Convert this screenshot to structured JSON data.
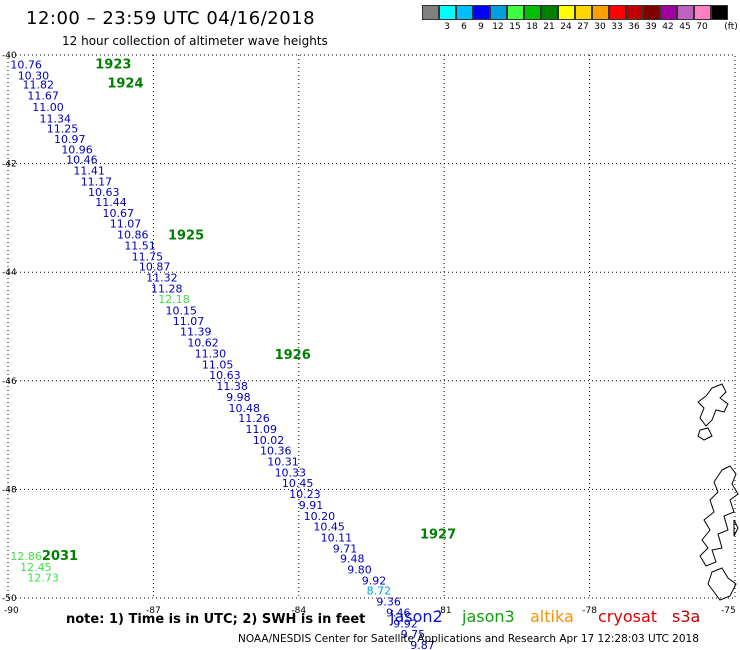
{
  "title": "12:00 – 23:59 UTC 04/16/2018",
  "subtitle": "12 hour collection of altimeter wave heights",
  "scale": {
    "unit": "(ft)",
    "swatches": [
      {
        "color": "#808080",
        "label": ""
      },
      {
        "color": "#00ffff",
        "label": "3"
      },
      {
        "color": "#00bfff",
        "label": "6"
      },
      {
        "color": "#0000ff",
        "label": "9"
      },
      {
        "color": "#00a0e0",
        "label": "12"
      },
      {
        "color": "#40ff40",
        "label": "15"
      },
      {
        "color": "#00c000",
        "label": "18"
      },
      {
        "color": "#008000",
        "label": "21"
      },
      {
        "color": "#ffff00",
        "label": "24"
      },
      {
        "color": "#ffd700",
        "label": "27"
      },
      {
        "color": "#ffa000",
        "label": "30"
      },
      {
        "color": "#ff0000",
        "label": "33"
      },
      {
        "color": "#c00000",
        "label": "36"
      },
      {
        "color": "#800000",
        "label": "39"
      },
      {
        "color": "#a000a0",
        "label": "42"
      },
      {
        "color": "#c060c0",
        "label": "45"
      },
      {
        "color": "#ff80c0",
        "label": "70"
      },
      {
        "color": "#000000",
        "label": ""
      }
    ]
  },
  "axes": {
    "lat_ticks": [
      "-40",
      "-42",
      "-44",
      "-46",
      "-48",
      "-50"
    ],
    "lon_ticks": [
      "-90",
      "-87",
      "-84",
      "-81",
      "-78",
      "-75"
    ]
  },
  "track": {
    "times": [
      {
        "label": "1923",
        "lon": -88.2,
        "lat": -40.25
      },
      {
        "label": "1924",
        "lon": -87.95,
        "lat": -40.6
      },
      {
        "label": "1925",
        "lon": -86.7,
        "lat": -43.4
      },
      {
        "label": "1926",
        "lon": -84.5,
        "lat": -45.6
      },
      {
        "label": "1927",
        "lon": -81.5,
        "lat": -48.9
      },
      {
        "label": "2031",
        "lon": -89.3,
        "lat": -49.3
      }
    ],
    "points": [
      {
        "v": "10.76",
        "lon": -89.95,
        "lat": -40.25,
        "color": "#0000c0"
      },
      {
        "v": "10.30",
        "lon": -89.8,
        "lat": -40.45,
        "color": "#0000c0"
      },
      {
        "v": "11.82",
        "lon": -89.7,
        "lat": -40.62,
        "color": "#0000c0"
      },
      {
        "v": "11.67",
        "lon": -89.6,
        "lat": -40.82,
        "color": "#0000c0"
      },
      {
        "v": "11.00",
        "lon": -89.5,
        "lat": -41.03,
        "color": "#0000c0"
      },
      {
        "v": "11.34",
        "lon": -89.35,
        "lat": -41.24,
        "color": "#0000c0"
      },
      {
        "v": "11.25",
        "lon": -89.2,
        "lat": -41.43,
        "color": "#0000c0"
      },
      {
        "v": "10.97",
        "lon": -89.05,
        "lat": -41.62,
        "color": "#0000c0"
      },
      {
        "v": "10.96",
        "lon": -88.9,
        "lat": -41.81,
        "color": "#0000c0"
      },
      {
        "v": "10.46",
        "lon": -88.8,
        "lat": -42.0,
        "color": "#0000c0"
      },
      {
        "v": "11.41",
        "lon": -88.65,
        "lat": -42.2,
        "color": "#0000c0"
      },
      {
        "v": "11.17",
        "lon": -88.5,
        "lat": -42.4,
        "color": "#0000c0"
      },
      {
        "v": "10.63",
        "lon": -88.35,
        "lat": -42.6,
        "color": "#0000c0"
      },
      {
        "v": "11.44",
        "lon": -88.2,
        "lat": -42.78,
        "color": "#0000c0"
      },
      {
        "v": "10.67",
        "lon": -88.05,
        "lat": -42.98,
        "color": "#0000c0"
      },
      {
        "v": "11.07",
        "lon": -87.9,
        "lat": -43.18,
        "color": "#0000c0"
      },
      {
        "v": "10.86",
        "lon": -87.75,
        "lat": -43.38,
        "color": "#0000c0"
      },
      {
        "v": "11.51",
        "lon": -87.6,
        "lat": -43.58,
        "color": "#0000c0"
      },
      {
        "v": "11.75",
        "lon": -87.45,
        "lat": -43.78,
        "color": "#0000c0"
      },
      {
        "v": "10.87",
        "lon": -87.3,
        "lat": -43.97,
        "color": "#0000c0"
      },
      {
        "v": "11.32",
        "lon": -87.15,
        "lat": -44.17,
        "color": "#0000c0"
      },
      {
        "v": "11.28",
        "lon": -87.05,
        "lat": -44.37,
        "color": "#0000c0"
      },
      {
        "v": "12.18",
        "lon": -86.9,
        "lat": -44.57,
        "color": "#40e040"
      },
      {
        "v": "10.15",
        "lon": -86.75,
        "lat": -44.78,
        "color": "#0000c0"
      },
      {
        "v": "11.07",
        "lon": -86.6,
        "lat": -44.97,
        "color": "#0000c0"
      },
      {
        "v": "11.39",
        "lon": -86.45,
        "lat": -45.17,
        "color": "#0000c0"
      },
      {
        "v": "10.62",
        "lon": -86.3,
        "lat": -45.37,
        "color": "#0000c0"
      },
      {
        "v": "11.30",
        "lon": -86.15,
        "lat": -45.57,
        "color": "#0000c0"
      },
      {
        "v": "11.05",
        "lon": -86.0,
        "lat": -45.77,
        "color": "#0000c0"
      },
      {
        "v": "10.63",
        "lon": -85.85,
        "lat": -45.97,
        "color": "#0000c0"
      },
      {
        "v": "11.38",
        "lon": -85.7,
        "lat": -46.17,
        "color": "#0000c0"
      },
      {
        "v": "9.98",
        "lon": -85.5,
        "lat": -46.37,
        "color": "#0000c0"
      },
      {
        "v": "10.48",
        "lon": -85.45,
        "lat": -46.57,
        "color": "#0000c0"
      },
      {
        "v": "11.26",
        "lon": -85.25,
        "lat": -46.76,
        "color": "#0000c0"
      },
      {
        "v": "11.09",
        "lon": -85.1,
        "lat": -46.96,
        "color": "#0000c0"
      },
      {
        "v": "10.02",
        "lon": -84.95,
        "lat": -47.16,
        "color": "#0000c0"
      },
      {
        "v": "10.36",
        "lon": -84.8,
        "lat": -47.36,
        "color": "#0000c0"
      },
      {
        "v": "10.31",
        "lon": -84.65,
        "lat": -47.56,
        "color": "#0000c0"
      },
      {
        "v": "10.33",
        "lon": -84.5,
        "lat": -47.76,
        "color": "#0000c0"
      },
      {
        "v": "10.45",
        "lon": -84.35,
        "lat": -47.96,
        "color": "#0000c0"
      },
      {
        "v": "10.23",
        "lon": -84.2,
        "lat": -48.16,
        "color": "#0000c0"
      },
      {
        "v": "9.91",
        "lon": -84.0,
        "lat": -48.36,
        "color": "#0000c0"
      },
      {
        "v": "10.20",
        "lon": -83.9,
        "lat": -48.56,
        "color": "#0000c0"
      },
      {
        "v": "10.45",
        "lon": -83.7,
        "lat": -48.76,
        "color": "#0000c0"
      },
      {
        "v": "10.11",
        "lon": -83.55,
        "lat": -48.96,
        "color": "#0000c0"
      },
      {
        "v": "9.71",
        "lon": -83.3,
        "lat": -49.16,
        "color": "#0000c0"
      },
      {
        "v": "9.48",
        "lon": -83.15,
        "lat": -49.35,
        "color": "#0000c0"
      },
      {
        "v": "9.80",
        "lon": -83.0,
        "lat": -49.55,
        "color": "#0000c0"
      },
      {
        "v": "9.92",
        "lon": -82.7,
        "lat": -49.75,
        "color": "#0000c0"
      },
      {
        "v": "8.72",
        "lon": -82.6,
        "lat": -49.94,
        "color": "#00a0e0"
      },
      {
        "v": "9.36",
        "lon": -82.4,
        "lat": -50.14,
        "color": "#0000c0"
      },
      {
        "v": "9.46",
        "lon": -82.2,
        "lat": -50.34,
        "color": "#0000c0"
      },
      {
        "v": "9.92",
        "lon": -82.05,
        "lat": -50.54,
        "color": "#0000c0"
      },
      {
        "v": "9.75",
        "lon": -81.9,
        "lat": -50.74,
        "color": "#0000c0"
      },
      {
        "v": "9.87",
        "lon": -81.7,
        "lat": -50.94,
        "color": "#0000c0"
      },
      {
        "v": "12.86",
        "lon": -89.95,
        "lat": -49.3,
        "color": "#40e040"
      },
      {
        "v": "12.45",
        "lon": -89.75,
        "lat": -49.5,
        "color": "#40e040"
      },
      {
        "v": "12.73",
        "lon": -89.6,
        "lat": -49.7,
        "color": "#40e040"
      }
    ]
  },
  "footer": {
    "note": "note:  1) Time is in UTC;  2) SWH is in feet",
    "credit": "NOAA/NESDIS Center for Satellite Applications and Research     Apr 17 12:28:03 UTC 2018",
    "satellites": [
      {
        "name": "jason2",
        "color": "#1010d0"
      },
      {
        "name": "jason3",
        "color": "#10a010"
      },
      {
        "name": "altika",
        "color": "#ff9000"
      },
      {
        "name": "cryosat",
        "color": "#e00000"
      },
      {
        "name": "s3a",
        "color": "#c00000"
      }
    ]
  }
}
